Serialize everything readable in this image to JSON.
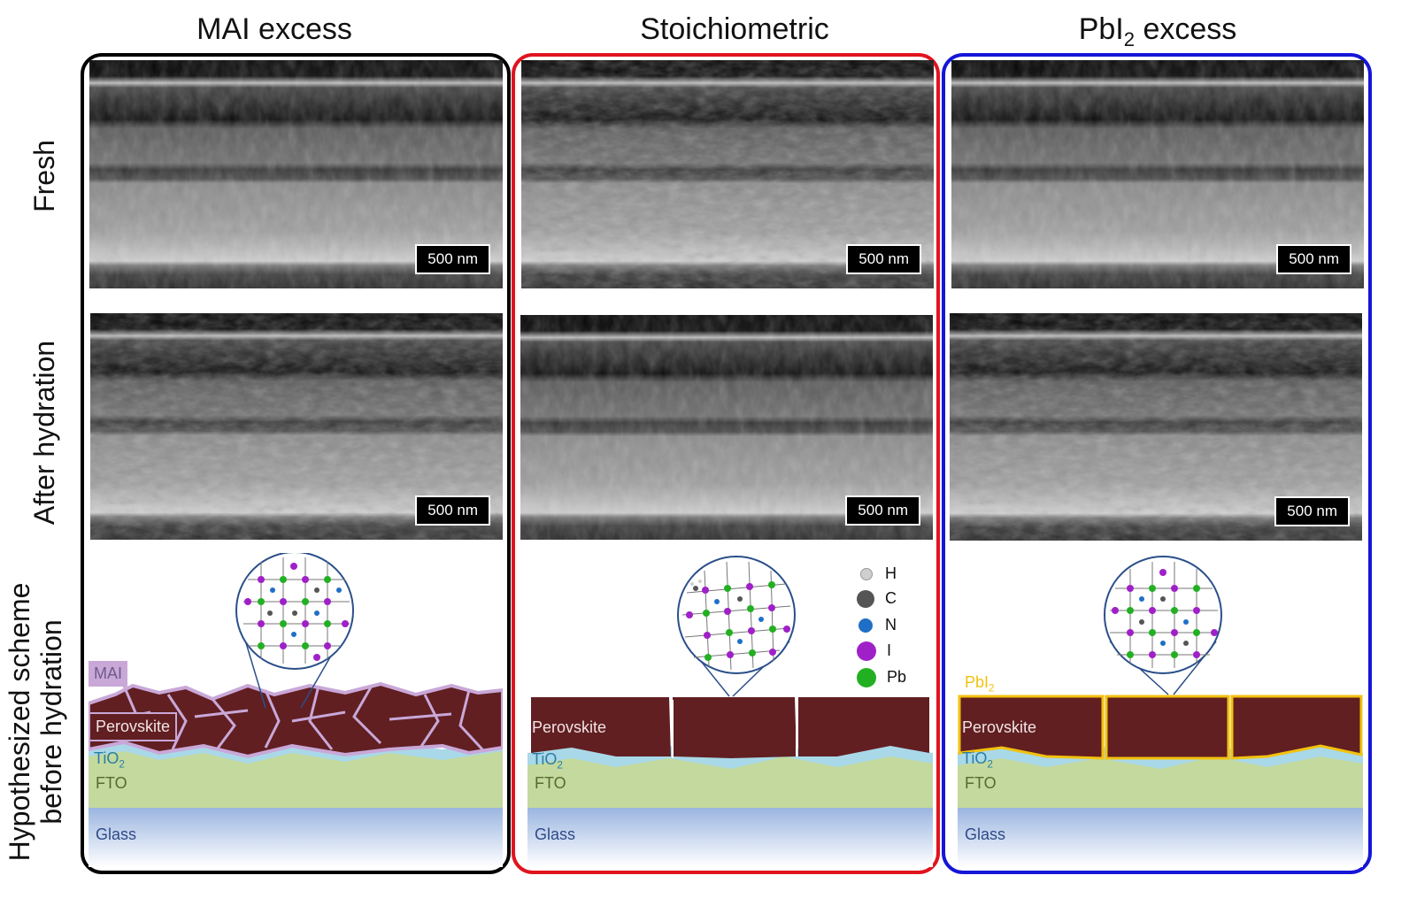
{
  "columns": [
    {
      "title_main": "MAI excess",
      "title_sub": "",
      "title_suffix": "",
      "frame_color": "#000000"
    },
    {
      "title_main": "Stoichiometric",
      "title_sub": "",
      "title_suffix": "",
      "frame_color": "#e0141e"
    },
    {
      "title_main": "PbI",
      "title_sub": "2",
      "title_suffix": " excess",
      "frame_color": "#1515d8"
    }
  ],
  "rows": {
    "fresh": "Fresh",
    "after": "After hydration",
    "scheme_line1": "Hypothesized scheme",
    "scheme_line2": "before hydration"
  },
  "scale_bars": {
    "fresh": [
      "500 nm",
      "500 nm",
      "500 nm"
    ],
    "after": [
      "500 nm",
      "500 nm",
      "500 nm"
    ]
  },
  "layers": {
    "mai": "MAI",
    "perovskite": "Perovskite",
    "tio2_main": "TiO",
    "tio2_sub": "2",
    "fto": "FTO",
    "glass": "Glass",
    "pbi2_main": "PbI",
    "pbi2_sub": "2"
  },
  "legend": [
    {
      "label": "H",
      "color": "#cfcfcf"
    },
    {
      "label": "C",
      "color": "#555555"
    },
    {
      "label": "N",
      "color": "#1f6fc7"
    },
    {
      "label": "I",
      "color": "#a020c8"
    },
    {
      "label": "Pb",
      "color": "#22b022"
    }
  ],
  "colors": {
    "perovskite": "#611f22",
    "mai_outline": "#c9a8d8",
    "tio2": "#a9d8e8",
    "fto": "#c3d99e",
    "glass_top": "#9ab5e0",
    "pbi2": "#f2c20f"
  }
}
